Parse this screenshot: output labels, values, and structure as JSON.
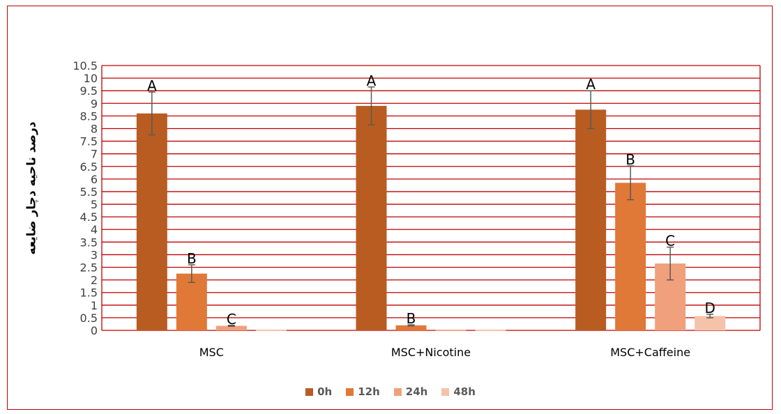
{
  "chart_data": {
    "type": "bar",
    "title": "",
    "xlabel": "",
    "ylabel": "درصد ناحیه دچار ضایعه",
    "ylim": [
      0,
      10.5
    ],
    "y_ticks": [
      "0",
      "0.5",
      "1",
      "1.5",
      "2",
      "2.5",
      "3",
      "3.5",
      "4",
      "4.5",
      "5",
      "5.5",
      "6",
      "6.5",
      "7",
      "7.5",
      "8",
      "8.5",
      "9",
      "9.5",
      "10",
      "10.5"
    ],
    "grid": true,
    "legend_position": "bottom",
    "categories": [
      "MSC",
      "MSC+Nicotine",
      "MSC+Caffeine"
    ],
    "series": [
      {
        "name": "0h",
        "color": "#b85c22",
        "values": [
          8.6,
          8.9,
          8.75
        ],
        "errors": [
          0.85,
          0.75,
          0.75
        ],
        "labels": [
          "A",
          "A",
          "A"
        ]
      },
      {
        "name": "12h",
        "color": "#e07838",
        "values": [
          2.25,
          0.2,
          5.85
        ],
        "errors": [
          0.35,
          0.02,
          0.67
        ],
        "labels": [
          "B",
          "B",
          "B"
        ]
      },
      {
        "name": "24h",
        "color": "#f0a07a",
        "values": [
          0.18,
          0.0,
          2.65
        ],
        "errors": [
          0.02,
          0.0,
          0.65
        ],
        "labels": [
          "C",
          "",
          "C"
        ]
      },
      {
        "name": "48h",
        "color": "#f5c2aa",
        "values": [
          0.0,
          0.0,
          0.57
        ],
        "errors": [
          0.0,
          0.0,
          0.07
        ],
        "labels": [
          "",
          "",
          "D"
        ]
      }
    ]
  }
}
